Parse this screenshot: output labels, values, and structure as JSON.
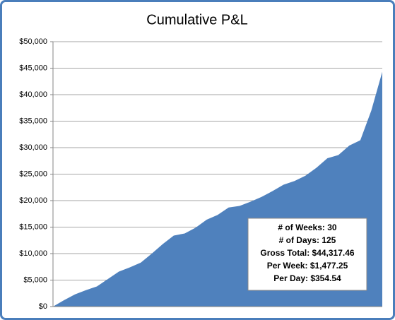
{
  "chart_data": {
    "type": "area",
    "title": "Cumulative P&L",
    "categories": [
      null,
      null,
      null,
      null,
      null,
      null,
      null,
      null,
      null,
      null,
      null,
      null,
      null,
      null,
      null,
      null,
      null,
      null,
      null,
      null,
      null,
      null,
      null,
      null,
      null,
      null,
      null,
      null,
      null,
      null,
      null
    ],
    "values": [
      0,
      1200,
      2300,
      3100,
      3800,
      5200,
      6600,
      7400,
      8300,
      10000,
      11800,
      13400,
      13800,
      14900,
      16400,
      17300,
      18700,
      19000,
      19800,
      20700,
      21800,
      23000,
      23700,
      24700,
      26200,
      28000,
      28600,
      30400,
      31400,
      37000,
      44317.46
    ],
    "color": "#4f81bd",
    "ylim": [
      0,
      50000
    ],
    "yticks": [
      {
        "value": 0,
        "label": "$0"
      },
      {
        "value": 5000,
        "label": "$5,000"
      },
      {
        "value": 10000,
        "label": "$10,000"
      },
      {
        "value": 15000,
        "label": "$15,000"
      },
      {
        "value": 20000,
        "label": "$20,000"
      },
      {
        "value": 25000,
        "label": "$25,000"
      },
      {
        "value": 30000,
        "label": "$30,000"
      },
      {
        "value": 35000,
        "label": "$35,000"
      },
      {
        "value": 40000,
        "label": "$40,000"
      },
      {
        "value": 45000,
        "label": "$45,000"
      },
      {
        "value": 50000,
        "label": "$50,000"
      }
    ],
    "grid": true,
    "annotations": [
      "# of Weeks: 30",
      "# of Days: 125",
      "Gross Total: $44,317.46",
      "Per Week: $1,477.25",
      "Per Day: $354.54"
    ]
  }
}
